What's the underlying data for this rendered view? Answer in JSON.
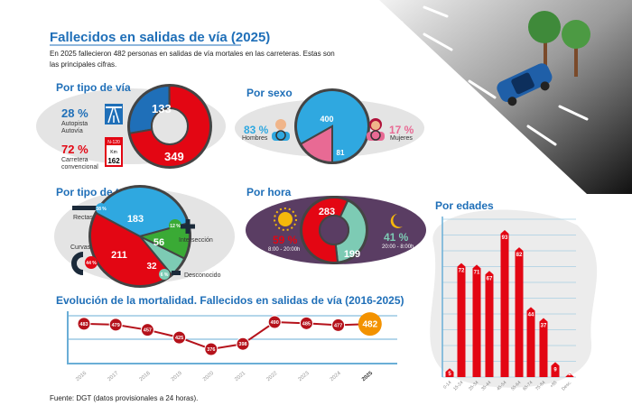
{
  "title": "Fallecidos en salidas de vía (2025)",
  "intro": [
    "En 2025 fallecieron 482 personas en salidas de vía mortales en las carreteras. Estas son",
    "las principales cifras."
  ],
  "colors": {
    "blue": "#1f6fb8",
    "red": "#e30613",
    "lightblue": "#2fa8e0",
    "pink": "#e86a94",
    "green": "#3aaa35",
    "teal": "#7dcbb4",
    "orange": "#f39200",
    "purple": "#5a3d63"
  },
  "tipo_via": {
    "heading": "Por tipo de vía",
    "autopista": {
      "pct": "28 %",
      "label1": "Autopista",
      "label2": "Autovía",
      "value": 133
    },
    "convencional": {
      "pct": "72 %",
      "label1": "Carretera",
      "label2": "convencional",
      "value": 349
    },
    "sign_road": "N-120",
    "sign_km": "Km",
    "sign_num": "162"
  },
  "sexo": {
    "heading": "Por sexo",
    "hombres": {
      "pct": "83 %",
      "label": "Hombres",
      "value": 400
    },
    "mujeres": {
      "pct": "17 %",
      "label": "Mujeres",
      "value": 81
    }
  },
  "tramo": {
    "heading": "Por tipo de tramo",
    "rectas": {
      "pct": "38 %",
      "label": "Rectas",
      "value": 183
    },
    "interseccion": {
      "pct": "12 %",
      "label": "Intersección",
      "value": 56
    },
    "desconocido": {
      "pct": "6 %",
      "label": "Desconocido",
      "value": 32
    },
    "curvas": {
      "pct": "44 %",
      "label": "Curvas",
      "value": 211
    }
  },
  "hora": {
    "heading": "Por hora",
    "dia": {
      "pct": "59 %",
      "range": "8:00 - 20:00h",
      "value": 283
    },
    "noche": {
      "pct": "41 %",
      "range": "20:00 - 8:00h",
      "value": 199
    }
  },
  "chart_data": [
    {
      "type": "bar",
      "title": "Por edades",
      "categories": [
        "0-14",
        "15-24",
        "25-34",
        "35-44",
        "45-54",
        "55-64",
        "65-74",
        "75-84",
        "+85",
        "Desc."
      ],
      "values": [
        5,
        72,
        71,
        67,
        93,
        82,
        44,
        37,
        9,
        2
      ],
      "grid": true
    },
    {
      "type": "line",
      "title": "Evolución de la mortalidad. Fallecidos en salidas de vía (2016-2025)",
      "categories": [
        "2016",
        "2017",
        "2018",
        "2019",
        "2020",
        "2021",
        "2022",
        "2023",
        "2024",
        "2025"
      ],
      "values": [
        483,
        479,
        457,
        425,
        376,
        398,
        490,
        485,
        477,
        482
      ],
      "highlight": "2025"
    }
  ],
  "footer": "Fuente: DGT (datos provisionales a 24 horas)."
}
